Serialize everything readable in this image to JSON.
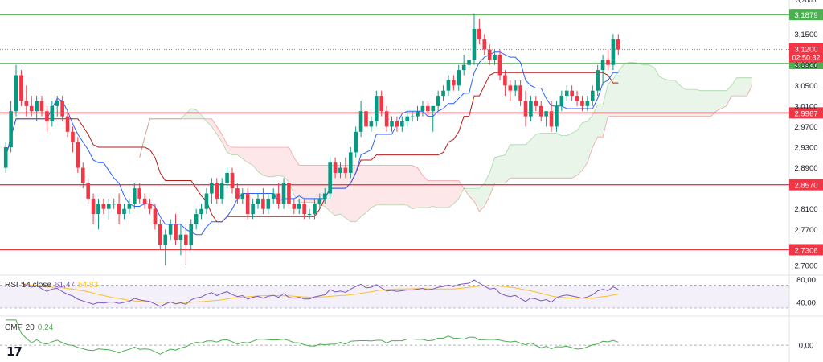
{
  "chart_data": [
    {
      "type": "candlestick",
      "instrument_pane": "main",
      "price_axis": {
        "ylim": [
          2.6875,
          3.21
        ],
        "tick_labels": [
          "3,1500",
          "3,0900",
          "3,0500",
          "3,0100",
          "2,9700",
          "2,9300",
          "2,8900",
          "2,8100",
          "2,7700",
          "2,7000"
        ],
        "tick_values": [
          3.15,
          3.09,
          3.05,
          3.01,
          2.97,
          2.93,
          2.89,
          2.81,
          2.77,
          2.7
        ],
        "top_partial_label": "3,2000"
      },
      "current_price": {
        "label": "3,1200",
        "value": 3.12,
        "countdown": "02:50:32",
        "color": "#f23645"
      },
      "horizontal_levels": [
        {
          "label": "3,1879",
          "value": 3.1879,
          "color": "#4caf50"
        },
        {
          "label": "3,0927",
          "value": 3.0927,
          "color": "#4caf50"
        },
        {
          "label": "2,9967",
          "value": 2.9967,
          "color": "#f23645"
        },
        {
          "label": "2,8570",
          "value": 2.857,
          "color": "#f23645"
        },
        {
          "label": "2,7306",
          "value": 2.7306,
          "color": "#f23645"
        }
      ],
      "candles": [
        {
          "o": 2.89,
          "h": 2.94,
          "l": 2.88,
          "c": 2.93
        },
        {
          "o": 2.93,
          "h": 3.02,
          "l": 2.92,
          "c": 3.0
        },
        {
          "o": 3.0,
          "h": 3.09,
          "l": 2.99,
          "c": 3.07
        },
        {
          "o": 3.07,
          "h": 3.08,
          "l": 3.01,
          "c": 3.02
        },
        {
          "o": 3.02,
          "h": 3.05,
          "l": 2.99,
          "c": 3.01
        },
        {
          "o": 3.01,
          "h": 3.03,
          "l": 2.99,
          "c": 3.0
        },
        {
          "o": 3.0,
          "h": 3.03,
          "l": 2.98,
          "c": 3.02
        },
        {
          "o": 3.02,
          "h": 3.03,
          "l": 2.99,
          "c": 3.0
        },
        {
          "o": 3.0,
          "h": 3.01,
          "l": 2.96,
          "c": 2.98
        },
        {
          "o": 2.98,
          "h": 3.02,
          "l": 2.97,
          "c": 3.01
        },
        {
          "o": 3.01,
          "h": 3.03,
          "l": 2.99,
          "c": 3.02
        },
        {
          "o": 3.02,
          "h": 3.03,
          "l": 2.98,
          "c": 2.99
        },
        {
          "o": 2.99,
          "h": 3.0,
          "l": 2.95,
          "c": 2.96
        },
        {
          "o": 2.96,
          "h": 2.97,
          "l": 2.92,
          "c": 2.94
        },
        {
          "o": 2.94,
          "h": 2.95,
          "l": 2.88,
          "c": 2.89
        },
        {
          "o": 2.89,
          "h": 2.9,
          "l": 2.85,
          "c": 2.86
        },
        {
          "o": 2.86,
          "h": 2.87,
          "l": 2.82,
          "c": 2.83
        },
        {
          "o": 2.83,
          "h": 2.84,
          "l": 2.78,
          "c": 2.8
        },
        {
          "o": 2.8,
          "h": 2.83,
          "l": 2.77,
          "c": 2.82
        },
        {
          "o": 2.82,
          "h": 2.83,
          "l": 2.8,
          "c": 2.81
        },
        {
          "o": 2.81,
          "h": 2.83,
          "l": 2.79,
          "c": 2.82
        },
        {
          "o": 2.82,
          "h": 2.83,
          "l": 2.81,
          "c": 2.82
        },
        {
          "o": 2.82,
          "h": 2.84,
          "l": 2.78,
          "c": 2.8
        },
        {
          "o": 2.8,
          "h": 2.82,
          "l": 2.79,
          "c": 2.81
        },
        {
          "o": 2.81,
          "h": 2.83,
          "l": 2.8,
          "c": 2.82
        },
        {
          "o": 2.82,
          "h": 2.86,
          "l": 2.81,
          "c": 2.85
        },
        {
          "o": 2.85,
          "h": 2.86,
          "l": 2.82,
          "c": 2.83
        },
        {
          "o": 2.83,
          "h": 2.84,
          "l": 2.81,
          "c": 2.82
        },
        {
          "o": 2.82,
          "h": 2.83,
          "l": 2.8,
          "c": 2.81
        },
        {
          "o": 2.81,
          "h": 2.82,
          "l": 2.77,
          "c": 2.78
        },
        {
          "o": 2.78,
          "h": 2.79,
          "l": 2.73,
          "c": 2.74
        },
        {
          "o": 2.74,
          "h": 2.77,
          "l": 2.7,
          "c": 2.76
        },
        {
          "o": 2.76,
          "h": 2.79,
          "l": 2.75,
          "c": 2.78
        },
        {
          "o": 2.78,
          "h": 2.8,
          "l": 2.74,
          "c": 2.75
        },
        {
          "o": 2.75,
          "h": 2.78,
          "l": 2.72,
          "c": 2.76
        },
        {
          "o": 2.76,
          "h": 2.78,
          "l": 2.7,
          "c": 2.74
        },
        {
          "o": 2.74,
          "h": 2.79,
          "l": 2.73,
          "c": 2.78
        },
        {
          "o": 2.78,
          "h": 2.81,
          "l": 2.77,
          "c": 2.8
        },
        {
          "o": 2.8,
          "h": 2.82,
          "l": 2.79,
          "c": 2.81
        },
        {
          "o": 2.81,
          "h": 2.85,
          "l": 2.8,
          "c": 2.84
        },
        {
          "o": 2.84,
          "h": 2.87,
          "l": 2.82,
          "c": 2.86
        },
        {
          "o": 2.86,
          "h": 2.87,
          "l": 2.82,
          "c": 2.83
        },
        {
          "o": 2.83,
          "h": 2.87,
          "l": 2.82,
          "c": 2.86
        },
        {
          "o": 2.86,
          "h": 2.89,
          "l": 2.85,
          "c": 2.88
        },
        {
          "o": 2.88,
          "h": 2.89,
          "l": 2.84,
          "c": 2.85
        },
        {
          "o": 2.85,
          "h": 2.86,
          "l": 2.82,
          "c": 2.83
        },
        {
          "o": 2.83,
          "h": 2.85,
          "l": 2.82,
          "c": 2.84
        },
        {
          "o": 2.84,
          "h": 2.85,
          "l": 2.79,
          "c": 2.8
        },
        {
          "o": 2.8,
          "h": 2.83,
          "l": 2.79,
          "c": 2.82
        },
        {
          "o": 2.82,
          "h": 2.84,
          "l": 2.81,
          "c": 2.83
        },
        {
          "o": 2.83,
          "h": 2.85,
          "l": 2.8,
          "c": 2.81
        },
        {
          "o": 2.81,
          "h": 2.84,
          "l": 2.8,
          "c": 2.83
        },
        {
          "o": 2.83,
          "h": 2.85,
          "l": 2.82,
          "c": 2.84
        },
        {
          "o": 2.84,
          "h": 2.86,
          "l": 2.81,
          "c": 2.82
        },
        {
          "o": 2.82,
          "h": 2.87,
          "l": 2.81,
          "c": 2.86
        },
        {
          "o": 2.86,
          "h": 2.87,
          "l": 2.81,
          "c": 2.82
        },
        {
          "o": 2.82,
          "h": 2.83,
          "l": 2.8,
          "c": 2.81
        },
        {
          "o": 2.81,
          "h": 2.83,
          "l": 2.8,
          "c": 2.82
        },
        {
          "o": 2.82,
          "h": 2.83,
          "l": 2.79,
          "c": 2.8
        },
        {
          "o": 2.8,
          "h": 2.81,
          "l": 2.79,
          "c": 2.8
        },
        {
          "o": 2.8,
          "h": 2.83,
          "l": 2.79,
          "c": 2.82
        },
        {
          "o": 2.82,
          "h": 2.84,
          "l": 2.81,
          "c": 2.83
        },
        {
          "o": 2.83,
          "h": 2.85,
          "l": 2.82,
          "c": 2.84
        },
        {
          "o": 2.84,
          "h": 2.91,
          "l": 2.83,
          "c": 2.9
        },
        {
          "o": 2.9,
          "h": 2.91,
          "l": 2.87,
          "c": 2.88
        },
        {
          "o": 2.88,
          "h": 2.9,
          "l": 2.87,
          "c": 2.89
        },
        {
          "o": 2.89,
          "h": 2.91,
          "l": 2.87,
          "c": 2.88
        },
        {
          "o": 2.88,
          "h": 2.93,
          "l": 2.87,
          "c": 2.92
        },
        {
          "o": 2.92,
          "h": 2.97,
          "l": 2.91,
          "c": 2.96
        },
        {
          "o": 2.96,
          "h": 3.02,
          "l": 2.95,
          "c": 3.0
        },
        {
          "o": 3.0,
          "h": 3.01,
          "l": 2.96,
          "c": 2.97
        },
        {
          "o": 2.97,
          "h": 2.99,
          "l": 2.96,
          "c": 2.98
        },
        {
          "o": 2.98,
          "h": 3.04,
          "l": 2.97,
          "c": 3.03
        },
        {
          "o": 3.03,
          "h": 3.04,
          "l": 2.99,
          "c": 3.0
        },
        {
          "o": 3.0,
          "h": 3.01,
          "l": 2.96,
          "c": 2.97
        },
        {
          "o": 2.97,
          "h": 2.99,
          "l": 2.96,
          "c": 2.98
        },
        {
          "o": 2.98,
          "h": 2.99,
          "l": 2.96,
          "c": 2.97
        },
        {
          "o": 2.97,
          "h": 2.99,
          "l": 2.96,
          "c": 2.98
        },
        {
          "o": 2.98,
          "h": 3.0,
          "l": 2.97,
          "c": 2.99
        },
        {
          "o": 2.99,
          "h": 3.0,
          "l": 2.98,
          "c": 2.99
        },
        {
          "o": 2.99,
          "h": 3.01,
          "l": 2.98,
          "c": 3.0
        },
        {
          "o": 3.0,
          "h": 3.02,
          "l": 2.99,
          "c": 3.01
        },
        {
          "o": 3.01,
          "h": 3.02,
          "l": 2.99,
          "c": 3.0
        },
        {
          "o": 3.0,
          "h": 3.01,
          "l": 2.96,
          "c": 3.01
        },
        {
          "o": 3.01,
          "h": 3.04,
          "l": 3.0,
          "c": 3.03
        },
        {
          "o": 3.03,
          "h": 3.05,
          "l": 3.02,
          "c": 3.04
        },
        {
          "o": 3.04,
          "h": 3.07,
          "l": 3.03,
          "c": 3.06
        },
        {
          "o": 3.06,
          "h": 3.07,
          "l": 3.04,
          "c": 3.05
        },
        {
          "o": 3.05,
          "h": 3.09,
          "l": 3.04,
          "c": 3.08
        },
        {
          "o": 3.08,
          "h": 3.11,
          "l": 3.07,
          "c": 3.09
        },
        {
          "o": 3.09,
          "h": 3.11,
          "l": 3.08,
          "c": 3.1
        },
        {
          "o": 3.1,
          "h": 3.19,
          "l": 3.09,
          "c": 3.16
        },
        {
          "o": 3.16,
          "h": 3.18,
          "l": 3.13,
          "c": 3.14
        },
        {
          "o": 3.14,
          "h": 3.15,
          "l": 3.11,
          "c": 3.12
        },
        {
          "o": 3.12,
          "h": 3.13,
          "l": 3.09,
          "c": 3.1
        },
        {
          "o": 3.1,
          "h": 3.12,
          "l": 3.09,
          "c": 3.11
        },
        {
          "o": 3.11,
          "h": 3.12,
          "l": 3.06,
          "c": 3.07
        },
        {
          "o": 3.07,
          "h": 3.08,
          "l": 3.03,
          "c": 3.05
        },
        {
          "o": 3.05,
          "h": 3.06,
          "l": 3.02,
          "c": 3.04
        },
        {
          "o": 3.04,
          "h": 3.06,
          "l": 3.03,
          "c": 3.05
        },
        {
          "o": 3.05,
          "h": 3.06,
          "l": 3.01,
          "c": 3.02
        },
        {
          "o": 3.02,
          "h": 3.04,
          "l": 2.97,
          "c": 2.99
        },
        {
          "o": 2.99,
          "h": 3.03,
          "l": 2.98,
          "c": 3.02
        },
        {
          "o": 3.02,
          "h": 3.03,
          "l": 3.0,
          "c": 3.01
        },
        {
          "o": 3.01,
          "h": 3.02,
          "l": 2.98,
          "c": 2.99
        },
        {
          "o": 2.99,
          "h": 3.0,
          "l": 2.97,
          "c": 3.0
        },
        {
          "o": 3.0,
          "h": 3.02,
          "l": 2.96,
          "c": 2.97
        },
        {
          "o": 2.97,
          "h": 3.02,
          "l": 2.96,
          "c": 3.01
        },
        {
          "o": 3.01,
          "h": 3.04,
          "l": 3.0,
          "c": 3.03
        },
        {
          "o": 3.03,
          "h": 3.05,
          "l": 3.02,
          "c": 3.04
        },
        {
          "o": 3.04,
          "h": 3.05,
          "l": 3.02,
          "c": 3.03
        },
        {
          "o": 3.03,
          "h": 3.04,
          "l": 3.01,
          "c": 3.02
        },
        {
          "o": 3.02,
          "h": 3.03,
          "l": 3.0,
          "c": 3.01
        },
        {
          "o": 3.01,
          "h": 3.03,
          "l": 3.0,
          "c": 3.02
        },
        {
          "o": 3.02,
          "h": 3.05,
          "l": 3.01,
          "c": 3.04
        },
        {
          "o": 3.04,
          "h": 3.09,
          "l": 3.03,
          "c": 3.08
        },
        {
          "o": 3.08,
          "h": 3.11,
          "l": 3.05,
          "c": 3.1
        },
        {
          "o": 3.1,
          "h": 3.12,
          "l": 3.08,
          "c": 3.09
        },
        {
          "o": 3.09,
          "h": 3.15,
          "l": 3.08,
          "c": 3.14
        },
        {
          "o": 3.14,
          "h": 3.15,
          "l": 3.11,
          "c": 3.12
        }
      ],
      "colors": {
        "up": "#089981",
        "down": "#f23645",
        "kumo_bull": "#4caf50",
        "kumo_bear": "#f23645",
        "tenkan": "#2962ff",
        "kijun": "#b71c1c"
      }
    },
    {
      "type": "line",
      "pane": "rsi",
      "indicator": "RSI",
      "params": "14 close",
      "values_display": {
        "rsi": "61,47",
        "ma": "54,83"
      },
      "ylim": [
        20,
        85
      ],
      "tick_labels": [
        "80,00",
        "40,00"
      ],
      "tick_values": [
        80,
        40
      ],
      "band": [
        70,
        30
      ],
      "colors": {
        "rsi": "#7e57c2",
        "ma": "#fbc02d"
      }
    },
    {
      "type": "line",
      "pane": "cmf",
      "indicator": "CMF",
      "params": "20",
      "values_display": {
        "cmf": "0,24"
      },
      "ylim": [
        -0.2,
        0.35
      ],
      "tick_labels": [
        "0,00"
      ],
      "tick_values": [
        0
      ],
      "colors": {
        "cmf": "#4caf50"
      }
    }
  ],
  "branding": {
    "logo_text": "17"
  }
}
